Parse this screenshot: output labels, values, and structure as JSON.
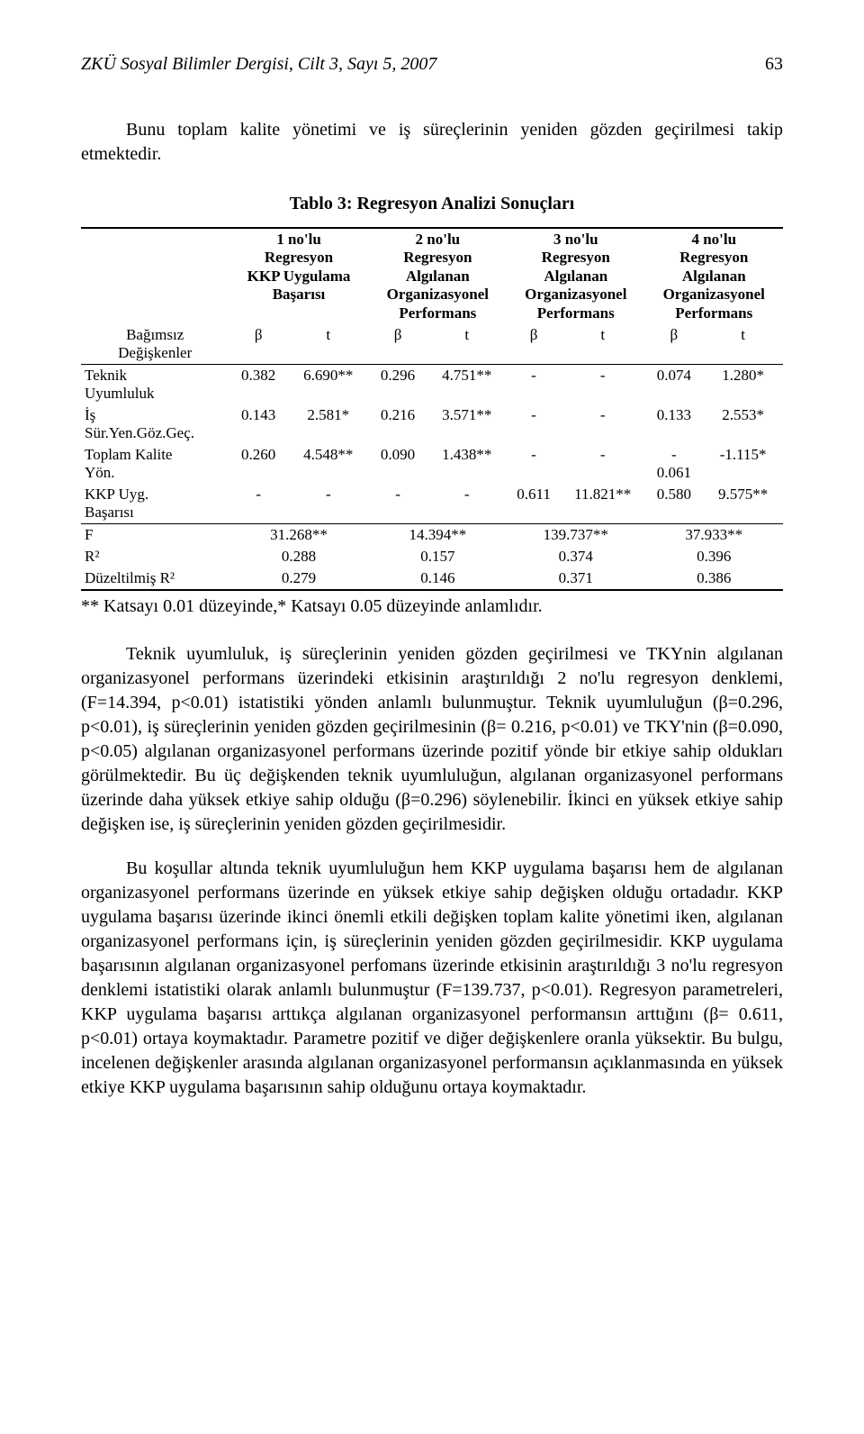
{
  "header": {
    "journal": "ZKÜ Sosyal Bilimler Dergisi, Cilt 3, Sayı 5, 2007",
    "page_number": "63"
  },
  "intro_para": "Bunu toplam kalite yönetimi ve iş süreçlerinin yeniden gözden geçirilmesi takip etmektedir.",
  "table": {
    "title": "Tablo 3: Regresyon Analizi Sonuçları",
    "model_headers": [
      "1 no'lu\nRegresyon\nKKP Uygulama\nBaşarısı",
      "2 no'lu\nRegresyon\nAlgılanan\nOrganizasyonel\nPerformans",
      "3 no'lu\nRegresyon\nAlgılanan\nOrganizasyonel\nPerformans",
      "4 no'lu\nRegresyon\nAlgılanan\nOrganizasyonel\nPerformans"
    ],
    "row_labels": {
      "dependent": "Bağımsız\nDeğişkenler",
      "teknik": "Teknik\nUyumluluk",
      "is": "İş\nSür.Yen.Göz.Geç.",
      "tky": "Toplam Kalite\nYön.",
      "kkp": "KKP Uyg.\nBaşarısı",
      "F": "F",
      "R2": "R²",
      "adjR2": "Düzeltilmiş R²"
    },
    "beta_t_labels": {
      "beta": "β",
      "t": "t"
    },
    "rows": {
      "teknik": [
        "0.382",
        "6.690**",
        "0.296",
        "4.751**",
        "-",
        "-",
        "0.074",
        "1.280*"
      ],
      "is": [
        "0.143",
        "2.581*",
        "0.216",
        "3.571**",
        "-",
        "-",
        "0.133",
        "2.553*"
      ],
      "tky": [
        "0.260",
        "4.548**",
        "0.090",
        "1.438**",
        "-",
        "-",
        "-\n0.061",
        "-1.115*"
      ],
      "kkp": [
        "-",
        "-",
        "-",
        "-",
        "0.611",
        "11.821**",
        "0.580",
        "9.575**"
      ]
    },
    "stats": {
      "F": [
        "31.268**",
        "14.394**",
        "139.737**",
        "37.933**"
      ],
      "R2": [
        "0.288",
        "0.157",
        "0.374",
        "0.396"
      ],
      "adjR2": [
        "0.279",
        "0.146",
        "0.371",
        "0.386"
      ]
    },
    "footnote": "** Katsayı 0.01 düzeyinde,* Katsayı 0.05 düzeyinde anlamlıdır."
  },
  "paragraphs": [
    "Teknik uyumluluk, iş süreçlerinin yeniden gözden geçirilmesi ve TKYnin algılanan organizasyonel performans üzerindeki etkisinin araştırıldığı 2 no'lu regresyon denklemi, (F=14.394, p<0.01) istatistiki yönden anlamlı bulunmuştur. Teknik uyumluluğun (β=0.296, p<0.01), iş süreçlerinin yeniden gözden geçirilmesinin (β= 0.216, p<0.01) ve TKY'nin (β=0.090, p<0.05) algılanan organizasyonel performans üzerinde pozitif yönde bir etkiye sahip oldukları görülmektedir. Bu üç değişkenden teknik uyumluluğun, algılanan organizasyonel performans üzerinde daha yüksek etkiye sahip olduğu (β=0.296) söylenebilir. İkinci en yüksek etkiye sahip değişken ise, iş süreçlerinin yeniden gözden geçirilmesidir.",
    "Bu koşullar altında teknik uyumluluğun hem KKP uygulama başarısı hem de algılanan organizasyonel performans üzerinde en yüksek etkiye sahip değişken olduğu ortadadır. KKP uygulama başarısı üzerinde ikinci önemli etkili değişken toplam kalite yönetimi iken, algılanan organizasyonel performans için, iş süreçlerinin yeniden gözden geçirilmesidir. KKP uygulama başarısının algılanan organizasyonel perfomans üzerinde etkisinin araştırıldığı 3 no'lu regresyon denklemi istatistiki olarak anlamlı bulunmuştur (F=139.737, p<0.01). Regresyon parametreleri, KKP uygulama başarısı arttıkça algılanan organizasyonel performansın arttığını (β= 0.611, p<0.01) ortaya koymaktadır. Parametre pozitif ve diğer değişkenlere oranla yüksektir. Bu bulgu, incelenen değişkenler arasında algılanan organizasyonel performansın açıklanmasında en yüksek etkiye KKP uygulama başarısının sahip olduğunu ortaya koymaktadır."
  ]
}
